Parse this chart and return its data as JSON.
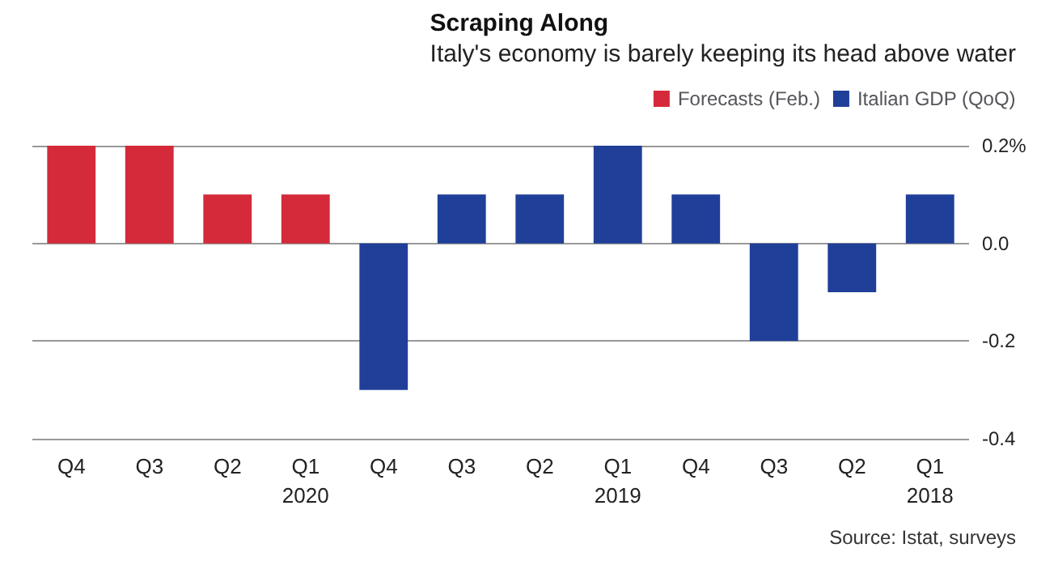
{
  "chart_data": {
    "type": "bar",
    "title": "Scraping Along",
    "subtitle": "Italy's economy is barely keeping its head above water",
    "categories": [
      "Q4",
      "Q3",
      "Q2",
      "Q1\n2020",
      "Q4",
      "Q3",
      "Q2",
      "Q1\n2019",
      "Q4",
      "Q3",
      "Q2",
      "Q1\n2018"
    ],
    "series": [
      {
        "name": "Forecasts (Feb.)",
        "color": "#d42a3a",
        "values": [
          0.2,
          0.2,
          0.1,
          0.1,
          null,
          null,
          null,
          null,
          null,
          null,
          null,
          null
        ]
      },
      {
        "name": "Italian GDP (QoQ)",
        "color": "#1f3f99",
        "values": [
          null,
          null,
          null,
          null,
          -0.3,
          0.1,
          0.1,
          0.2,
          0.1,
          -0.2,
          -0.1,
          0.1
        ]
      }
    ],
    "ylim": [
      -0.4,
      0.2
    ],
    "yticks": [
      {
        "value": -0.4,
        "label": "-0.4"
      },
      {
        "value": -0.2,
        "label": "-0.2"
      },
      {
        "value": 0,
        "label": "0.0"
      },
      {
        "value": 0.2,
        "label": "0.2%"
      }
    ],
    "grid": "y",
    "legend": "top right",
    "annotations": [
      "Source: Istat, surveys"
    ]
  }
}
